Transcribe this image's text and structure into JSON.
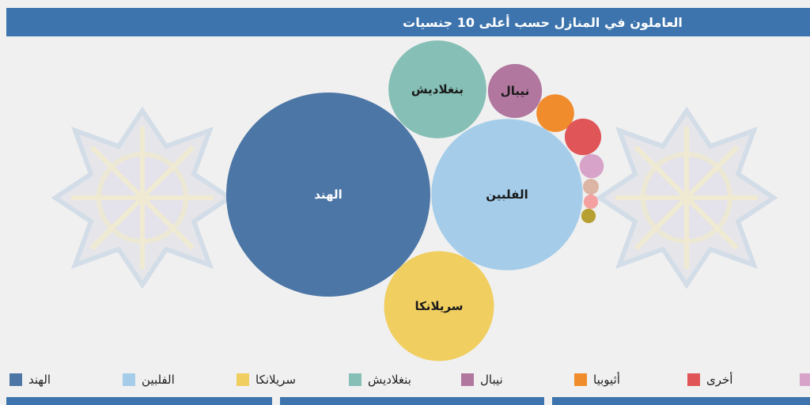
{
  "title": "العاملون في المنازل حسب أعلى 10 جنسيات",
  "chart_data": {
    "type": "bubble",
    "title": "العاملون في المنازل حسب أعلى 10 جنسيات",
    "series": [
      {
        "name": "الهند",
        "value": 100,
        "color": "#4c76a6",
        "show_label": true
      },
      {
        "name": "الفلبين",
        "value": 55,
        "color": "#a5cdea",
        "show_label": true
      },
      {
        "name": "سريلانكا",
        "value": 29,
        "color": "#f0ce60",
        "show_label": true
      },
      {
        "name": "بنغلاديش",
        "value": 23,
        "color": "#86bfb5",
        "show_label": true
      },
      {
        "name": "نيبال",
        "value": 7,
        "color": "#b1779f",
        "show_label": true
      },
      {
        "name": "أثيوبيا",
        "value": 3.4,
        "color": "#f08c2c",
        "show_label": false
      },
      {
        "name": "أخرى",
        "value": 3.2,
        "color": "#e05658",
        "show_label": false
      },
      {
        "name": "",
        "value": 1.4,
        "color": "#d7a3c9",
        "show_label": false
      },
      {
        "name": "",
        "value": 0.6,
        "color": "#dcb5a4",
        "show_label": false
      },
      {
        "name": "",
        "value": 0.5,
        "color": "#f4a0a0",
        "show_label": false
      },
      {
        "name": "",
        "value": 0.5,
        "color": "#b7a032",
        "show_label": false
      }
    ],
    "legend_position": "bottom"
  },
  "colors": {
    "header": "#3d74ad",
    "background": "#f0f0f0"
  }
}
